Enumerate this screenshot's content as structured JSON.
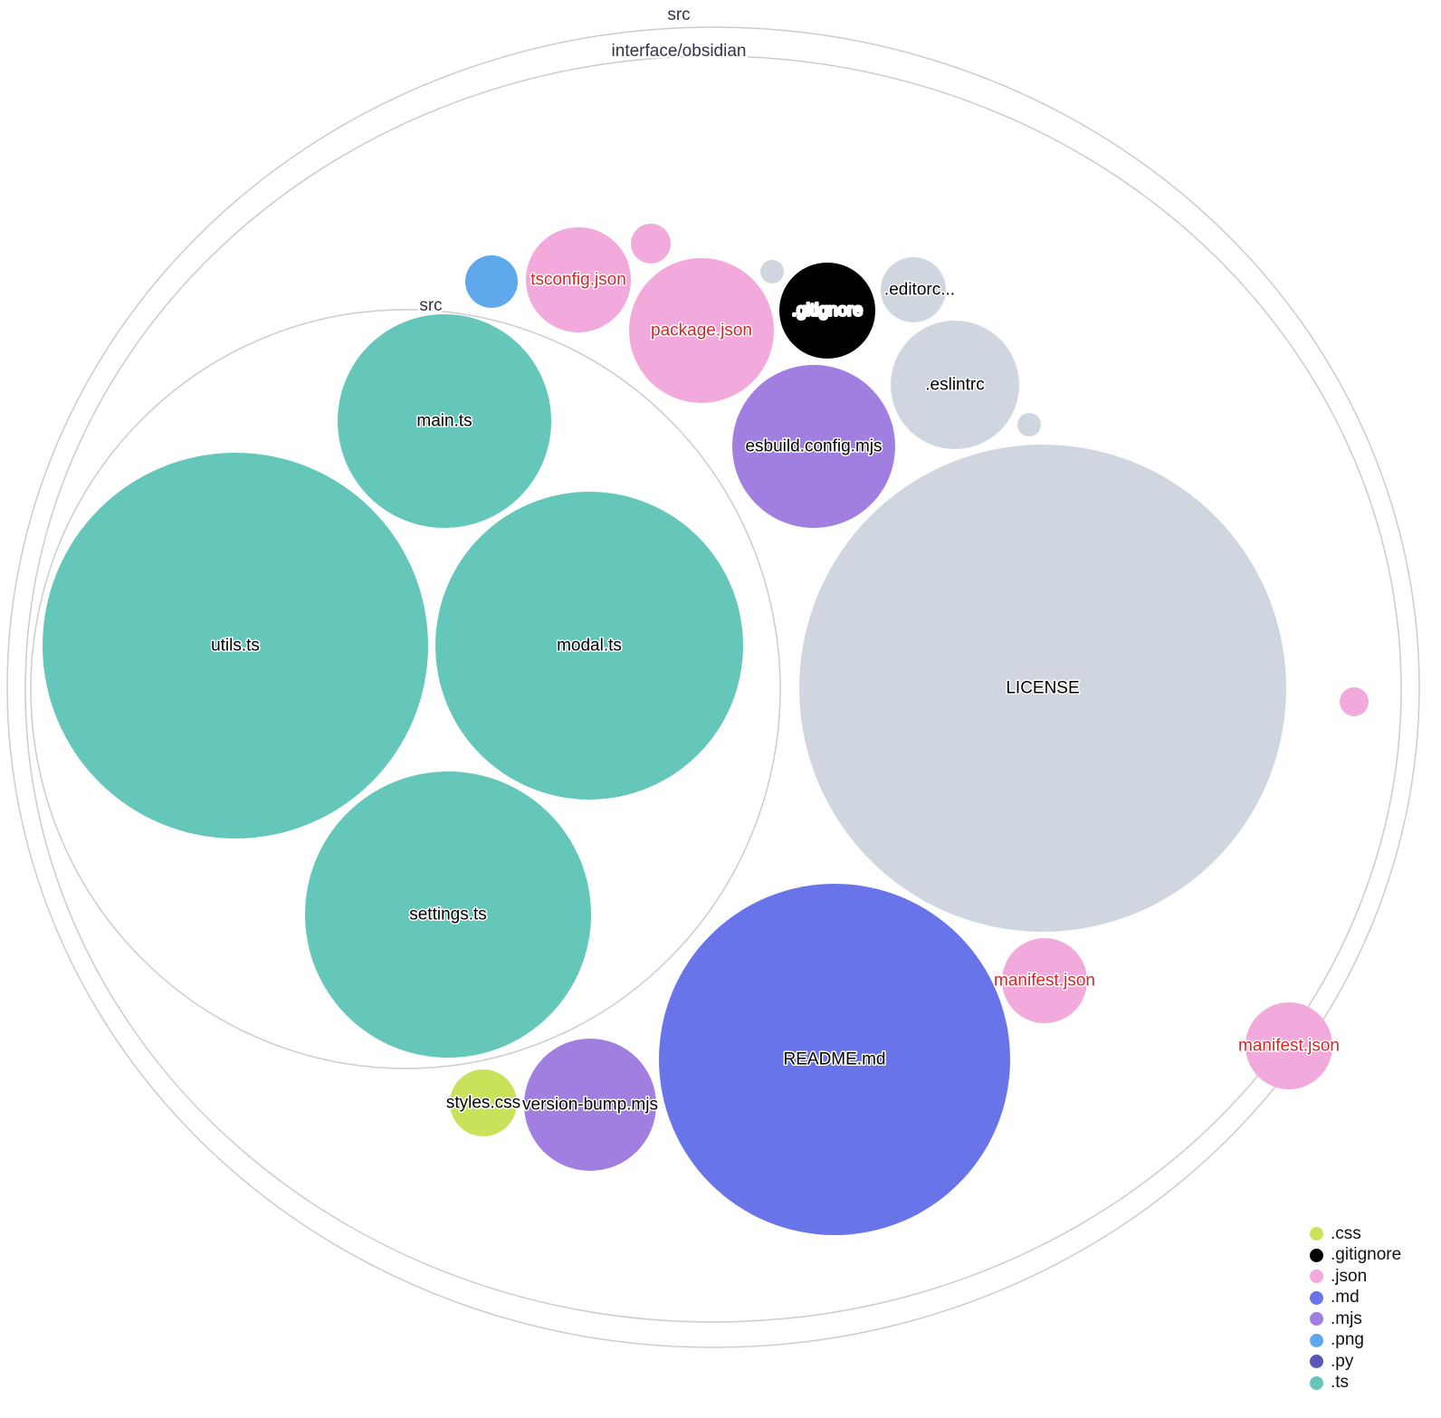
{
  "groups": [
    {
      "label": "src"
    },
    {
      "label": "interface/obsidian"
    },
    {
      "label": "src"
    }
  ],
  "files": [
    {
      "label": "main.ts",
      "ext": ".ts"
    },
    {
      "label": "utils.ts",
      "ext": ".ts"
    },
    {
      "label": "modal.ts",
      "ext": ".ts"
    },
    {
      "label": "settings.ts",
      "ext": ".ts"
    },
    {
      "label": "LICENSE",
      "ext": ""
    },
    {
      "label": "README.md",
      "ext": ".md"
    },
    {
      "label": "esbuild.config.mjs",
      "ext": ".mjs"
    },
    {
      "label": ".eslintrc",
      "ext": ""
    },
    {
      "label": "package.json",
      "ext": ".json"
    },
    {
      "label": "tsconfig.json",
      "ext": ".json"
    },
    {
      "label": "",
      "ext": ".png"
    },
    {
      "label": "",
      "ext": ".json"
    },
    {
      "label": "",
      "ext": ""
    },
    {
      "label": ".gitignore",
      "ext": ".gitignore"
    },
    {
      "label": ".editorc...",
      "ext": ""
    },
    {
      "label": "",
      "ext": ""
    },
    {
      "label": "manifest.json",
      "ext": ".json"
    },
    {
      "label": "manifest.json",
      "ext": ".json"
    },
    {
      "label": "",
      "ext": ".json"
    },
    {
      "label": "styles.css",
      "ext": ".css"
    },
    {
      "label": "version-bump.mjs",
      "ext": ".mjs"
    }
  ],
  "colors": {
    ".css": "#c8e35a",
    ".gitignore": "#000000",
    ".json": "#f1aadb",
    ".md": "#6874e8",
    ".mjs": "#a07fe0",
    ".png": "#60a8ec",
    ".py": "#5957b5",
    ".ts": "#64c7b9",
    "": "#d0d6e0",
    "json_label": "#d62728"
  },
  "legend": [
    {
      "label": ".css",
      "color": "#c8e35a"
    },
    {
      "label": ".gitignore",
      "color": "#000000"
    },
    {
      "label": ".json",
      "color": "#f1aadb"
    },
    {
      "label": ".md",
      "color": "#6874e8"
    },
    {
      "label": ".mjs",
      "color": "#a07fe0"
    },
    {
      "label": ".png",
      "color": "#60a8ec"
    },
    {
      "label": ".py",
      "color": "#5957b5"
    },
    {
      "label": ".ts",
      "color": "#64c7b9"
    }
  ]
}
